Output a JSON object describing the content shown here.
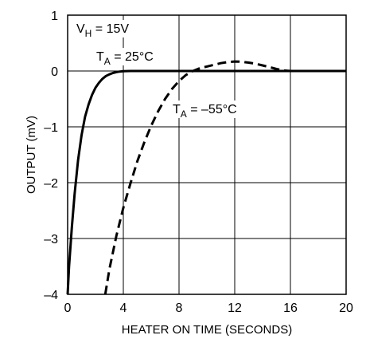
{
  "chart_data": {
    "type": "line",
    "title": "",
    "xlabel": "HEATER ON TIME (SECONDS)",
    "ylabel": "OUTPUT (mV)",
    "xlim": [
      0,
      20
    ],
    "ylim": [
      -4,
      1
    ],
    "xticks": [
      0,
      4,
      8,
      12,
      16,
      20
    ],
    "yticks": [
      1,
      0,
      -1,
      -2,
      -3,
      -4
    ],
    "grid": true,
    "annotations": {
      "vh": {
        "main": "V",
        "sub": "H",
        "rest": " = 15V"
      }
    },
    "series": [
      {
        "name": "TA = 25°C",
        "label_main": "T",
        "label_sub": "A",
        "label_rest": " = 25°C",
        "style": "solid",
        "x": [
          0.0,
          0.1,
          0.3,
          0.5,
          0.75,
          1.0,
          1.25,
          1.5,
          1.75,
          2.0,
          2.25,
          2.5,
          2.75,
          3.0,
          3.25,
          3.5,
          3.75,
          4.0,
          4.25,
          4.5,
          4.75,
          5.0,
          5.5,
          6,
          8,
          10,
          12,
          14,
          16,
          18,
          20
        ],
        "y": [
          -4.0,
          -3.5,
          -2.8,
          -2.2,
          -1.6,
          -1.15,
          -0.82,
          -0.6,
          -0.43,
          -0.3,
          -0.21,
          -0.14,
          -0.09,
          -0.06,
          -0.035,
          -0.02,
          -0.01,
          -0.005,
          -0.002,
          0.0,
          0.0,
          0.0,
          0.0,
          0,
          0,
          0,
          0,
          0,
          0,
          0,
          0
        ]
      },
      {
        "name": "TA = -55°C",
        "label_main": "T",
        "label_sub": "A",
        "label_rest": " = –55°C",
        "style": "dashed",
        "x": [
          2.7,
          3.0,
          3.5,
          4.0,
          4.5,
          5.0,
          5.5,
          6.0,
          6.5,
          7.0,
          7.5,
          8.0,
          8.5,
          9.0,
          9.5,
          10.0,
          10.5,
          11.0,
          11.5,
          12.0,
          12.5,
          13.0,
          13.5,
          14.0,
          14.5,
          15.0,
          15.5,
          16.0,
          16.5,
          17.0
        ],
        "y": [
          -4.0,
          -3.55,
          -2.95,
          -2.45,
          -2.02,
          -1.62,
          -1.28,
          -0.98,
          -0.72,
          -0.5,
          -0.32,
          -0.18,
          -0.07,
          0.0,
          0.05,
          0.08,
          0.11,
          0.14,
          0.16,
          0.17,
          0.165,
          0.15,
          0.13,
          0.1,
          0.07,
          0.035,
          0.01,
          0.0,
          0.0,
          0.0
        ]
      }
    ]
  }
}
